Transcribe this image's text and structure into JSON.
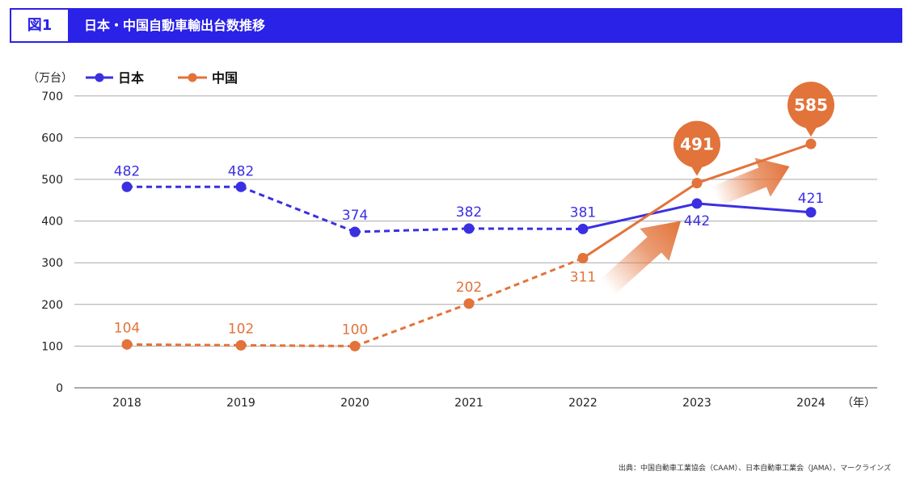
{
  "header": {
    "figure_label": "図1",
    "title": "日本・中国自動車輸出台数推移"
  },
  "colors": {
    "header_bg": "#2a22e6",
    "japan": "#3b30e0",
    "china": "#e2733a",
    "grid": "#a8a8a8"
  },
  "chart_data": {
    "type": "line",
    "unit_label": "（万台）",
    "x_unit_label": "（年）",
    "categories": [
      "2018",
      "2019",
      "2020",
      "2021",
      "2022",
      "2023",
      "2024"
    ],
    "y_ticks": [
      0,
      100,
      200,
      300,
      400,
      500,
      600,
      700
    ],
    "ylim": [
      0,
      700
    ],
    "grid": true,
    "legend_position": "top-left",
    "series": [
      {
        "name": "日本",
        "color": "#3b30e0",
        "values": [
          482,
          482,
          374,
          382,
          381,
          442,
          421
        ],
        "labels": [
          "482",
          "482",
          "374",
          "382",
          "381",
          "442",
          "421"
        ],
        "dashed_until_index": 4
      },
      {
        "name": "中国",
        "color": "#e2733a",
        "values": [
          104,
          102,
          100,
          202,
          311,
          491,
          585
        ],
        "labels": [
          "104",
          "102",
          "100",
          "202",
          "311",
          "491",
          "585"
        ],
        "dashed_until_index": 4,
        "highlight_indices": [
          5,
          6
        ]
      }
    ]
  },
  "source": "出典：中国自動車工業協会（CAAM）、日本自動車工業会（JAMA）、マークラインズ"
}
